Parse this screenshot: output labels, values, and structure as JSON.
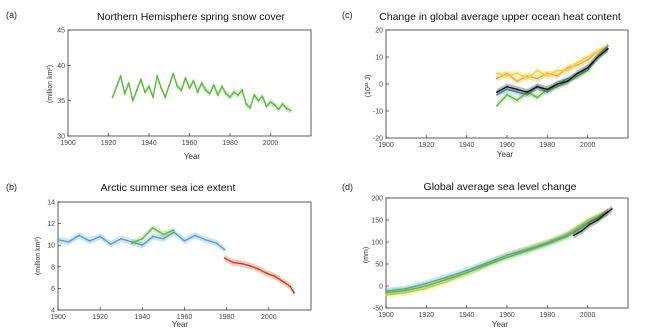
{
  "chart_data": [
    {
      "panel_label": "(a)",
      "type": "line",
      "title": "Northern Hemisphere spring snow cover",
      "xlabel": "Year",
      "ylabel": "(million km²)",
      "xlim": [
        1900,
        2020
      ],
      "ylim": [
        30,
        45
      ],
      "xticks": [
        1900,
        1920,
        1940,
        1960,
        1980,
        2000
      ],
      "yticks": [
        30,
        35,
        40,
        45
      ],
      "series": [
        {
          "color": "#5cb83c",
          "x": [
            1922,
            1924,
            1926,
            1928,
            1930,
            1932,
            1934,
            1936,
            1938,
            1940,
            1942,
            1944,
            1946,
            1948,
            1950,
            1952,
            1954,
            1956,
            1958,
            1960,
            1962,
            1964,
            1966,
            1968,
            1970,
            1972,
            1974,
            1976,
            1978,
            1980,
            1982,
            1984,
            1986,
            1988,
            1990,
            1992,
            1994,
            1996,
            1998,
            2000,
            2002,
            2004,
            2006,
            2008,
            2010
          ],
          "values": [
            35.5,
            37.0,
            38.5,
            36.0,
            37.5,
            35.0,
            36.5,
            38.0,
            36.2,
            37.0,
            35.5,
            38.5,
            36.8,
            35.5,
            37.2,
            38.8,
            37.0,
            36.5,
            38.2,
            36.8,
            37.8,
            36.2,
            37.5,
            36.5,
            36.0,
            37.2,
            35.8,
            37.0,
            36.0,
            35.5,
            36.2,
            35.8,
            36.5,
            34.5,
            34.0,
            35.8,
            35.0,
            35.6,
            34.2,
            34.8,
            34.4,
            33.8,
            34.5,
            33.9,
            33.6
          ]
        }
      ]
    },
    {
      "panel_label": "(b)",
      "type": "line",
      "title": "Arctic summer sea ice extent",
      "xlabel": "Year",
      "ylabel": "(million km²)",
      "xlim": [
        1900,
        2020
      ],
      "ylim": [
        4,
        14
      ],
      "xticks": [
        1900,
        1920,
        1940,
        1960,
        1980,
        2000
      ],
      "yticks": [
        4,
        6,
        8,
        10,
        12,
        14
      ],
      "series": [
        {
          "color": "#4f9fc9",
          "x": [
            1900,
            1905,
            1910,
            1915,
            1920,
            1925,
            1930,
            1935,
            1940,
            1945,
            1950,
            1955,
            1960,
            1965,
            1970,
            1975,
            1979
          ],
          "values": [
            10.5,
            10.3,
            10.9,
            10.4,
            10.8,
            10.1,
            10.6,
            10.3,
            10.0,
            10.8,
            10.6,
            11.2,
            10.4,
            10.9,
            10.5,
            10.2,
            9.6
          ]
        },
        {
          "color": "#5cb83c",
          "x": [
            1935,
            1940,
            1945,
            1950,
            1955
          ],
          "values": [
            10.2,
            10.6,
            11.6,
            11.0,
            11.4
          ]
        },
        {
          "color": "#cc3a1c",
          "x": [
            1979,
            1983,
            1987,
            1991,
            1995,
            1999,
            2003,
            2007,
            2010,
            2012
          ],
          "values": [
            8.8,
            8.4,
            8.3,
            8.1,
            7.8,
            7.4,
            7.1,
            6.6,
            6.2,
            5.6
          ]
        }
      ]
    },
    {
      "panel_label": "(c)",
      "type": "line",
      "title": "Change in global average upper ocean heat content",
      "xlabel": "Year",
      "ylabel": "(10²² J)",
      "xlim": [
        1900,
        2020
      ],
      "ylim": [
        -20,
        20
      ],
      "xticks": [
        1900,
        1920,
        1940,
        1960,
        1980,
        2000
      ],
      "yticks": [
        -20,
        -10,
        0,
        10,
        20
      ],
      "series": [
        {
          "color": "#f2a431",
          "x": [
            1955,
            1960,
            1965,
            1970,
            1975,
            1980,
            1985,
            1990,
            1995,
            2000,
            2005,
            2010
          ],
          "values": [
            2,
            4,
            1,
            3,
            2,
            4,
            3,
            6,
            7,
            9,
            12,
            14
          ]
        },
        {
          "color": "#e8d43a",
          "x": [
            1955,
            1960,
            1965,
            1970,
            1975,
            1980,
            1985,
            1990,
            1995,
            2000,
            2005,
            2010
          ],
          "values": [
            4,
            3,
            4,
            2,
            5,
            3,
            5,
            5,
            8,
            10,
            12,
            13
          ]
        },
        {
          "color": "#4f9fc9",
          "x": [
            1955,
            1960,
            1965,
            1970,
            1975,
            1980,
            1985,
            1990,
            1995,
            2000,
            2005,
            2010
          ],
          "values": [
            -4,
            -2,
            -3,
            -4,
            -1,
            -3,
            0,
            2,
            3,
            6,
            10,
            13
          ]
        },
        {
          "color": "#5cb83c",
          "x": [
            1955,
            1960,
            1965,
            1970,
            1975,
            1980,
            1985,
            1990,
            1995,
            2000,
            2005,
            2010
          ],
          "values": [
            -8,
            -4,
            -6,
            -3,
            -5,
            -2,
            -1,
            1,
            3,
            5,
            10,
            14
          ]
        },
        {
          "color": "#111111",
          "x": [
            1955,
            1960,
            1965,
            1970,
            1975,
            1980,
            1985,
            1990,
            1995,
            2000,
            2005,
            2010
          ],
          "values": [
            -3,
            -1,
            -2,
            -3,
            -1,
            -2,
            0,
            1,
            4,
            6,
            10,
            13
          ]
        }
      ]
    },
    {
      "panel_label": "(d)",
      "type": "line",
      "title": "Global average sea level change",
      "xlabel": "Year",
      "ylabel": "(mm)",
      "xlim": [
        1900,
        2020
      ],
      "ylim": [
        -50,
        200
      ],
      "xticks": [
        1900,
        1920,
        1940,
        1960,
        1980,
        2000
      ],
      "yticks": [
        -50,
        0,
        50,
        100,
        150,
        200
      ],
      "series": [
        {
          "color": "#e8d43a",
          "x": [
            1900,
            1910,
            1920,
            1930,
            1940,
            1950,
            1960,
            1970,
            1980,
            1990,
            2000,
            2010
          ],
          "values": [
            -20,
            -15,
            -5,
            10,
            30,
            50,
            70,
            85,
            100,
            120,
            150,
            170
          ]
        },
        {
          "color": "#4f9fc9",
          "x": [
            1900,
            1910,
            1920,
            1930,
            1940,
            1950,
            1960,
            1970,
            1980,
            1990,
            2000,
            2010
          ],
          "values": [
            -12,
            -6,
            6,
            20,
            35,
            52,
            70,
            83,
            98,
            116,
            145,
            168
          ]
        },
        {
          "color": "#5cb83c",
          "x": [
            1900,
            1910,
            1920,
            1930,
            1940,
            1950,
            1960,
            1970,
            1980,
            1990,
            2000,
            2010
          ],
          "values": [
            -15,
            -10,
            0,
            15,
            30,
            48,
            65,
            80,
            95,
            113,
            143,
            167
          ]
        },
        {
          "color": "#111111",
          "x": [
            1993,
            1997,
            2001,
            2005,
            2009,
            2012
          ],
          "values": [
            115,
            125,
            140,
            150,
            165,
            175
          ]
        }
      ]
    }
  ]
}
